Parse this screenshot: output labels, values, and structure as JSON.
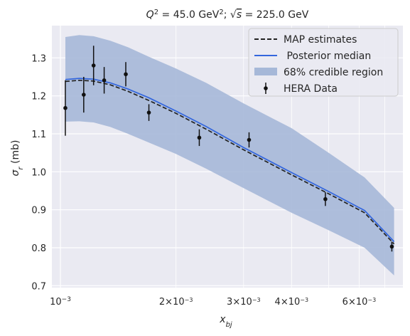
{
  "chart_data": {
    "type": "line",
    "title": "Q² = 45.0 GeV²; √s = 225.0 GeV",
    "title_parts": {
      "q": "Q",
      "q_exp": "2",
      "eq1": " = 45.0 GeV",
      "gev_exp": "2",
      "sep": "; ",
      "sqrt": "√",
      "s": "s",
      "eq2": " = 225.0 GeV"
    },
    "xlabel": "x_bj",
    "xlabel_parts": {
      "base": "x",
      "sub": "bj"
    },
    "ylabel": "σr (mb)",
    "ylabel_parts": {
      "base": "σ",
      "sub": "r",
      "unit": " (mb)"
    },
    "x_scale": "log",
    "xlim": [
      0.00095,
      0.0078
    ],
    "ylim": [
      0.695,
      1.385
    ],
    "y_ticks": [
      0.7,
      0.8,
      0.9,
      1.0,
      1.1,
      1.2,
      1.3
    ],
    "y_tick_labels": [
      "0.7",
      "0.8",
      "0.9",
      "1.0",
      "1.1",
      "1.2",
      "1.3"
    ],
    "x_major_ticks": [
      {
        "value": 0.001,
        "base": "10",
        "exp": "−3",
        "coef": ""
      }
    ],
    "x_minor_ticks": [
      {
        "value": 0.002,
        "coef": "2×",
        "base": "10",
        "exp": "−3"
      },
      {
        "value": 0.003,
        "coef": "3×",
        "base": "10",
        "exp": "−3"
      },
      {
        "value": 0.004,
        "coef": "4×",
        "base": "10",
        "exp": "−3"
      },
      {
        "value": 0.006,
        "coef": "6×",
        "base": "10",
        "exp": "−3"
      }
    ],
    "x_grid_values": [
      0.001,
      0.002,
      0.003,
      0.004,
      0.005,
      0.006,
      0.007
    ],
    "grid": true,
    "legend_position": "top-right",
    "series": [
      {
        "name": "MAP estimates",
        "style": "dashed",
        "color": "#222222",
        "x": [
          0.00103,
          0.00112,
          0.00122,
          0.00135,
          0.0015,
          0.0017,
          0.002,
          0.0024,
          0.003,
          0.004,
          0.005,
          0.0062,
          0.0074
        ],
        "y": [
          1.238,
          1.241,
          1.239,
          1.229,
          1.212,
          1.188,
          1.154,
          1.112,
          1.058,
          0.992,
          0.942,
          0.892,
          0.81
        ]
      },
      {
        "name": " Posterior median",
        "style": "solid",
        "color": "#3366dd",
        "x": [
          0.00103,
          0.00112,
          0.00122,
          0.00135,
          0.0015,
          0.0017,
          0.002,
          0.0024,
          0.003,
          0.004,
          0.005,
          0.0062,
          0.0074
        ],
        "y": [
          1.243,
          1.246,
          1.244,
          1.234,
          1.218,
          1.195,
          1.16,
          1.119,
          1.064,
          0.998,
          0.948,
          0.898,
          0.816
        ]
      }
    ],
    "band": {
      "name": "68% credible region",
      "color": "#a6b8d8",
      "x": [
        0.00103,
        0.00112,
        0.00122,
        0.00135,
        0.0015,
        0.0017,
        0.002,
        0.0024,
        0.003,
        0.004,
        0.005,
        0.0062,
        0.0074
      ],
      "upper": [
        1.355,
        1.36,
        1.357,
        1.345,
        1.328,
        1.303,
        1.272,
        1.234,
        1.18,
        1.115,
        1.05,
        0.985,
        0.905
      ],
      "lower": [
        1.132,
        1.133,
        1.13,
        1.118,
        1.1,
        1.077,
        1.047,
        1.008,
        0.957,
        0.892,
        0.846,
        0.8,
        0.727
      ]
    },
    "data_series": {
      "name": "HERA Data",
      "color": "#111111",
      "points": [
        {
          "x": 0.00103,
          "y": 1.168,
          "err": 0.073
        },
        {
          "x": 0.00115,
          "y": 1.203,
          "err": 0.047
        },
        {
          "x": 0.00122,
          "y": 1.28,
          "err": 0.052
        },
        {
          "x": 0.0013,
          "y": 1.241,
          "err": 0.035
        },
        {
          "x": 0.00148,
          "y": 1.257,
          "err": 0.032
        },
        {
          "x": 0.0017,
          "y": 1.156,
          "err": 0.022
        },
        {
          "x": 0.0023,
          "y": 1.09,
          "err": 0.022
        },
        {
          "x": 0.0031,
          "y": 1.084,
          "err": 0.02
        },
        {
          "x": 0.0049,
          "y": 0.928,
          "err": 0.018
        },
        {
          "x": 0.0073,
          "y": 0.803,
          "err": 0.013
        }
      ]
    }
  }
}
